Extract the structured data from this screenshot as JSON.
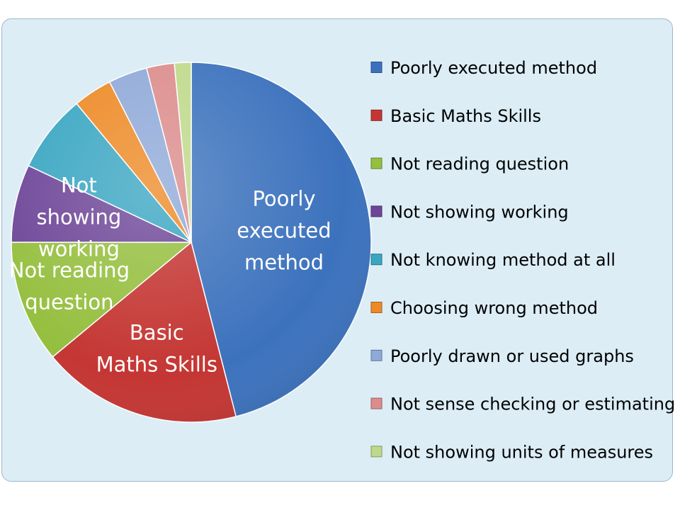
{
  "chart_data": {
    "type": "pie",
    "title": "",
    "legend_position": "right",
    "categories": [
      "Poorly executed method",
      "Basic Maths Skills",
      "Not reading question",
      "Not showing working",
      "Not knowing method at all",
      "Choosing wrong method",
      "Poorly drawn or used graphs",
      "Not sense checking or estimating",
      "Not showing units of measures"
    ],
    "values": [
      46,
      18,
      11,
      7,
      7,
      3.5,
      3.5,
      2.5,
      1.5
    ],
    "colors": [
      "#3c72bd",
      "#c43633",
      "#95bf3f",
      "#6e4698",
      "#3aa6c2",
      "#ed8a26",
      "#8fa9d8",
      "#dc8c8c",
      "#bfd98b"
    ],
    "slice_labels": [
      [
        "Poorly",
        "executed",
        "method"
      ],
      [
        "Basic",
        "Maths Skills"
      ],
      [
        "Not reading",
        "question"
      ],
      [
        "Not",
        "showing",
        "working"
      ],
      [],
      [],
      [],
      [],
      []
    ]
  }
}
